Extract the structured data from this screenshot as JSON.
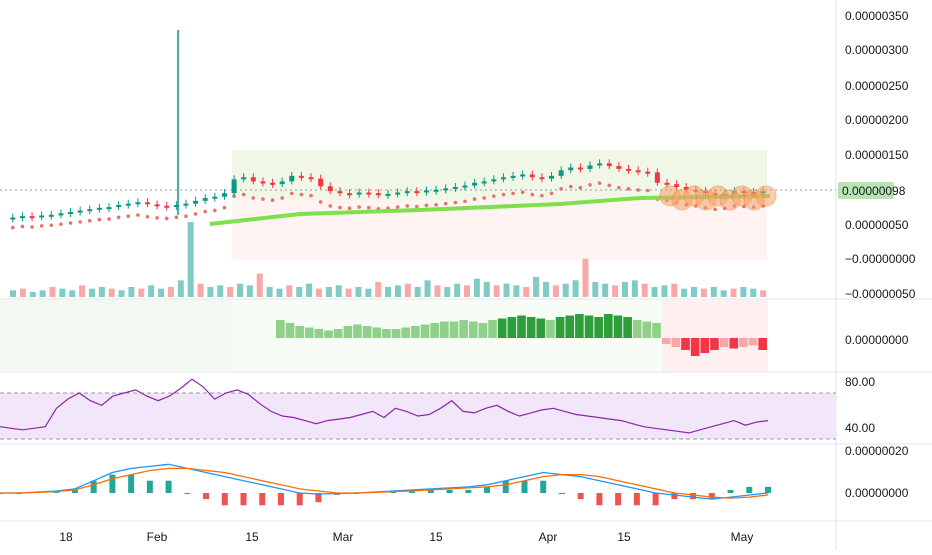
{
  "colors": {
    "up": "#26a69a",
    "down": "#ef5350",
    "candle_up": "#089981",
    "candle_down": "#f23645",
    "sar": "#e57368",
    "ma_green": "#7ee04a",
    "ma_orange": "#f4a340",
    "rsi_line": "#8e24aa",
    "rsi_band": "#f2e6fb",
    "macd_line": "#2196f3",
    "signal_line": "#ff6d00",
    "last_price_bg": "#b7e4b0",
    "grid_dash": "#9598a1"
  },
  "price_axis": {
    "ticks": [
      "0.00000350",
      "0.00000300",
      "0.00000250",
      "0.00000200",
      "0.00000150",
      "0.00000100",
      "0.00000050",
      "−0.00000000",
      "−0.00000050"
    ],
    "last_price": "0.00000098"
  },
  "momentum_axis": {
    "ticks": [
      "0.00000000"
    ]
  },
  "rsi_axis": {
    "ticks": [
      "80.00",
      "40.00"
    ]
  },
  "macd_axis": {
    "ticks": [
      "0.00000020",
      "0.00000000"
    ]
  },
  "time_axis": {
    "labels": [
      "18",
      "Feb",
      "15",
      "Mar",
      "15",
      "Apr",
      "15",
      "May"
    ]
  },
  "chart_data": [
    {
      "type": "candlestick",
      "panel": "price",
      "ylim": [
        -5e-07,
        3.5e-06
      ],
      "last_value": 9.8e-07,
      "series": [
        {
          "name": "close",
          "values": [
            6e-07,
            6.2e-07,
            6.1e-07,
            6.3e-07,
            6.4e-07,
            6.6e-07,
            6.8e-07,
            7e-07,
            7.2e-07,
            7.4e-07,
            7.5e-07,
            7.8e-07,
            8e-07,
            8.2e-07,
            7.9e-07,
            7.7e-07,
            7.6e-07,
            7.8e-07,
            8e-07,
            8.4e-07,
            8.8e-07,
            9e-07,
            9.5e-07,
            1.15e-06,
            1.18e-06,
            1.12e-06,
            1.1e-06,
            1.08e-06,
            1.12e-06,
            1.2e-06,
            1.18e-06,
            1.16e-06,
            1.05e-06,
            9.8e-07,
            9.5e-07,
            9.4e-07,
            9.6e-07,
            9.5e-07,
            9.3e-07,
            9.4e-07,
            9.6e-07,
            9.8e-07,
            9.7e-07,
            9.9e-07,
            1e-06,
            1.02e-06,
            1.04e-06,
            1.06e-06,
            1.1e-06,
            1.12e-06,
            1.15e-06,
            1.18e-06,
            1.2e-06,
            1.22e-06,
            1.18e-06,
            1.16e-06,
            1.2e-06,
            1.28e-06,
            1.32e-06,
            1.3e-06,
            1.35e-06,
            1.38e-06,
            1.34e-06,
            1.3e-06,
            1.28e-06,
            1.26e-06,
            1.25e-06,
            1.1e-06,
            1.08e-06,
            1.04e-06,
            1e-06,
            9.8e-07,
            9.5e-07,
            9.2e-07,
            9.4e-07,
            9.8e-07,
            9.7e-07,
            9.6e-07,
            9.8e-07
          ]
        }
      ]
    },
    {
      "type": "bar",
      "panel": "volume",
      "values": [
        0.4,
        0.5,
        0.3,
        0.4,
        0.6,
        0.5,
        0.4,
        0.7,
        0.5,
        0.6,
        0.5,
        0.4,
        0.6,
        0.5,
        0.7,
        0.5,
        0.6,
        1.0,
        4.5,
        0.8,
        0.6,
        0.7,
        0.6,
        0.8,
        0.7,
        1.4,
        0.6,
        0.5,
        0.7,
        0.6,
        0.8,
        0.5,
        0.6,
        0.7,
        0.5,
        0.6,
        0.5,
        0.9,
        0.6,
        0.7,
        0.8,
        0.6,
        1.0,
        0.7,
        0.6,
        0.8,
        0.7,
        1.1,
        0.9,
        0.7,
        0.8,
        0.7,
        0.6,
        1.2,
        0.9,
        0.7,
        0.8,
        1.0,
        2.3,
        0.9,
        0.8,
        0.7,
        0.9,
        1.0,
        0.8,
        0.6,
        0.7,
        0.8,
        0.5,
        0.6,
        0.5,
        0.6,
        0.4,
        0.5,
        0.6,
        0.5,
        0.4
      ]
    },
    {
      "type": "bar",
      "panel": "momentum",
      "values": [
        0.6,
        0.5,
        0.4,
        0.35,
        0.3,
        0.25,
        0.3,
        0.4,
        0.45,
        0.4,
        0.35,
        0.3,
        0.3,
        0.35,
        0.4,
        0.45,
        0.5,
        0.55,
        0.55,
        0.6,
        0.55,
        0.5,
        0.6,
        0.65,
        0.7,
        0.75,
        0.7,
        0.65,
        0.6,
        0.7,
        0.75,
        0.8,
        0.75,
        0.7,
        0.8,
        0.75,
        0.7,
        0.6,
        0.55,
        0.5,
        -0.2,
        -0.3,
        -0.4,
        -0.6,
        -0.5,
        -0.4,
        -0.3,
        -0.35,
        -0.3,
        -0.25,
        -0.4
      ]
    },
    {
      "type": "line",
      "panel": "rsi",
      "ylim": [
        30,
        85
      ],
      "band": [
        30,
        70
      ],
      "values": [
        48,
        47,
        46,
        47,
        48,
        60,
        66,
        70,
        65,
        62,
        68,
        70,
        72,
        68,
        65,
        68,
        73,
        79,
        74,
        66,
        70,
        72,
        69,
        63,
        58,
        55,
        54,
        52,
        50,
        52,
        53,
        54,
        56,
        58,
        54,
        60,
        58,
        55,
        56,
        60,
        65,
        58,
        57,
        60,
        62,
        58,
        55,
        57,
        59,
        60,
        58,
        56,
        55,
        54,
        53,
        52,
        50,
        48,
        47,
        46,
        45,
        44,
        46,
        48,
        50,
        52,
        49,
        51,
        52
      ]
    },
    {
      "type": "line",
      "panel": "macd",
      "ylim": [
        -3e-08,
        2.1e-07
      ],
      "series": [
        {
          "values": [
            0.0,
            0.0,
            5e-09,
            1e-08,
            2e-08,
            6e-08,
            1e-07,
            1.2e-07,
            1.3e-07,
            1.4e-07,
            1.2e-07,
            1e-07,
            8e-08,
            6e-08,
            4e-08,
            2e-08,
            0.0,
            -5e-09,
            -3e-09,
            0.0,
            5e-09,
            1e-08,
            1.5e-08,
            2e-08,
            2.5e-08,
            3e-08,
            4e-08,
            6e-08,
            8e-08,
            1e-07,
            9e-08,
            8e-08,
            6e-08,
            4e-08,
            2e-08,
            0.0,
            -1e-08,
            -2e-08,
            -3e-08,
            -2e-08,
            -1e-08,
            0.0
          ]
        },
        {
          "values": [
            0.0,
            0.0,
            3e-09,
            7e-09,
            1.5e-08,
            4e-08,
            7e-08,
            9e-08,
            1.1e-07,
            1.2e-07,
            1.2e-07,
            1.1e-07,
            1e-07,
            8e-08,
            6e-08,
            4e-08,
            2e-08,
            1e-08,
            0.0,
            0.0,
            3e-09,
            7e-09,
            1e-08,
            1.5e-08,
            2e-08,
            2.5e-08,
            3e-08,
            4e-08,
            6e-08,
            8e-08,
            9e-08,
            9e-08,
            8e-08,
            6e-08,
            4e-08,
            2e-08,
            0.0,
            -1e-08,
            -2e-08,
            -2.5e-08,
            -2e-08,
            -1e-08
          ]
        }
      ]
    }
  ]
}
